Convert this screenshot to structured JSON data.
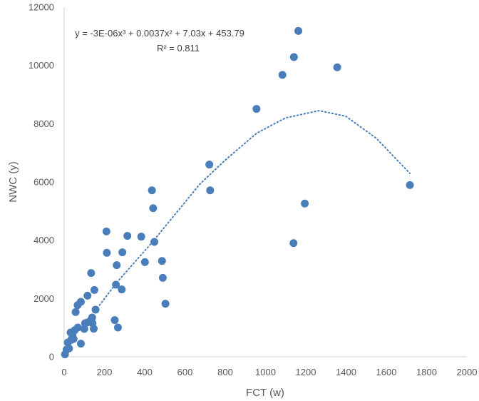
{
  "chart_data": {
    "type": "scatter",
    "xlabel": "FCT (w)",
    "ylabel": "NWC (y)",
    "xlim": [
      0,
      2000
    ],
    "ylim": [
      0,
      12000
    ],
    "xticks": [
      "0",
      "200",
      "400",
      "600",
      "800",
      "1000",
      "1200",
      "1400",
      "1600",
      "1800",
      "2000"
    ],
    "yticks": [
      "0",
      "2000",
      "4000",
      "6000",
      "8000",
      "10000",
      "12000"
    ],
    "grid": false,
    "marker_color": "#4a7ebb",
    "trendline": {
      "type": "polynomial-3",
      "equation": "y = -3E-06x³ + 0.0037x² + 7.03x + 453.79",
      "r_squared": "R² = 0.811",
      "style": "dotted",
      "samples": [
        [
          165,
          1673
        ],
        [
          259,
          2530
        ],
        [
          436,
          3918
        ],
        [
          673,
          5920
        ],
        [
          800,
          6750
        ],
        [
          956,
          7673
        ],
        [
          1100,
          8200
        ],
        [
          1267,
          8449
        ],
        [
          1400,
          8250
        ],
        [
          1550,
          7500
        ],
        [
          1717,
          6294
        ]
      ]
    },
    "points": [
      [
        1163,
        11184
      ],
      [
        1141,
        10286
      ],
      [
        1084,
        9673
      ],
      [
        1356,
        9935
      ],
      [
        955,
        8506
      ],
      [
        721,
        6596
      ],
      [
        725,
        5713
      ],
      [
        1717,
        5894
      ],
      [
        1195,
        5258
      ],
      [
        1139,
        3900
      ],
      [
        436,
        5713
      ],
      [
        442,
        5101
      ],
      [
        210,
        4302
      ],
      [
        314,
        4147
      ],
      [
        383,
        4122
      ],
      [
        448,
        3943
      ],
      [
        212,
        3568
      ],
      [
        289,
        3584
      ],
      [
        401,
        3249
      ],
      [
        486,
        3289
      ],
      [
        261,
        3143
      ],
      [
        490,
        2710
      ],
      [
        134,
        2874
      ],
      [
        257,
        2474
      ],
      [
        286,
        2310
      ],
      [
        150,
        2294
      ],
      [
        116,
        2098
      ],
      [
        503,
        1820
      ],
      [
        83,
        1886
      ],
      [
        67,
        1771
      ],
      [
        57,
        1535
      ],
      [
        156,
        1616
      ],
      [
        251,
        1257
      ],
      [
        267,
        1004
      ],
      [
        139,
        1347
      ],
      [
        130,
        1230
      ],
      [
        116,
        1180
      ],
      [
        104,
        1150
      ],
      [
        141,
        1150
      ],
      [
        147,
        963
      ],
      [
        100,
        955
      ],
      [
        68,
        1004
      ],
      [
        53,
        914
      ],
      [
        32,
        833
      ],
      [
        83,
        449
      ],
      [
        47,
        612
      ],
      [
        35,
        580
      ],
      [
        18,
        490
      ],
      [
        24,
        286
      ],
      [
        12,
        245
      ],
      [
        4,
        82
      ],
      [
        41,
        735
      ]
    ]
  }
}
